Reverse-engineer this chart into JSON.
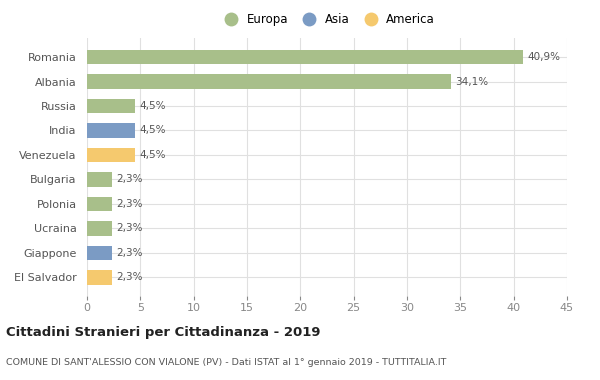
{
  "countries": [
    "Romania",
    "Albania",
    "Russia",
    "India",
    "Venezuela",
    "Bulgaria",
    "Polonia",
    "Ucraina",
    "Giappone",
    "El Salvador"
  ],
  "values": [
    40.9,
    34.1,
    4.5,
    4.5,
    4.5,
    2.3,
    2.3,
    2.3,
    2.3,
    2.3
  ],
  "labels": [
    "40,9%",
    "34,1%",
    "4,5%",
    "4,5%",
    "4,5%",
    "2,3%",
    "2,3%",
    "2,3%",
    "2,3%",
    "2,3%"
  ],
  "colors": [
    "#a8bf8a",
    "#a8bf8a",
    "#a8bf8a",
    "#7b9bc4",
    "#f5c96e",
    "#a8bf8a",
    "#a8bf8a",
    "#a8bf8a",
    "#7b9bc4",
    "#f5c96e"
  ],
  "legend": [
    {
      "label": "Europa",
      "color": "#a8bf8a"
    },
    {
      "label": "Asia",
      "color": "#7b9bc4"
    },
    {
      "label": "America",
      "color": "#f5c96e"
    }
  ],
  "xlim": [
    0,
    45
  ],
  "xticks": [
    0,
    5,
    10,
    15,
    20,
    25,
    30,
    35,
    40,
    45
  ],
  "title": "Cittadini Stranieri per Cittadinanza - 2019",
  "subtitle": "COMUNE DI SANT'ALESSIO CON VIALONE (PV) - Dati ISTAT al 1° gennaio 2019 - TUTTITALIA.IT",
  "background_color": "#ffffff",
  "grid_color": "#e0e0e0",
  "bar_height": 0.6
}
